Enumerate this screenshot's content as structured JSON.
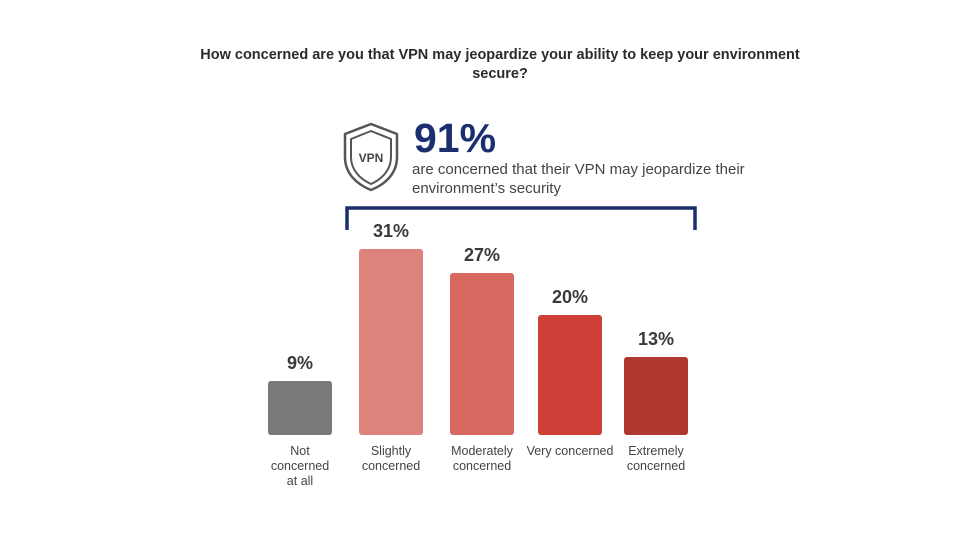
{
  "title": "How concerned are you that VPN may jeopardize your ability to keep your environment secure?",
  "callout": {
    "percent": "91%",
    "text": "are concerned that their VPN may jeopardize their environment’s security",
    "badge_text": "VPN",
    "icon": "shield-icon"
  },
  "colors": {
    "bracket": "#1b2f6e",
    "callout_accent": "#1b2f6e"
  },
  "chart_data": {
    "type": "bar",
    "title": "How concerned are you that VPN may jeopardize your ability to keep your environment secure?",
    "categories": [
      "Not concerned at all",
      "Slightly concerned",
      "Moderately concerned",
      "Very concerned",
      "Extremely concerned"
    ],
    "values": [
      9,
      31,
      27,
      20,
      13
    ],
    "value_labels": [
      "9%",
      "31%",
      "27%",
      "20%",
      "13%"
    ],
    "colors": [
      "#7a7a7a",
      "#de837b",
      "#d86760",
      "#cc4038",
      "#b0372e"
    ],
    "ylim": [
      0,
      31
    ],
    "grid": false,
    "xlabel": "",
    "ylabel": ""
  }
}
